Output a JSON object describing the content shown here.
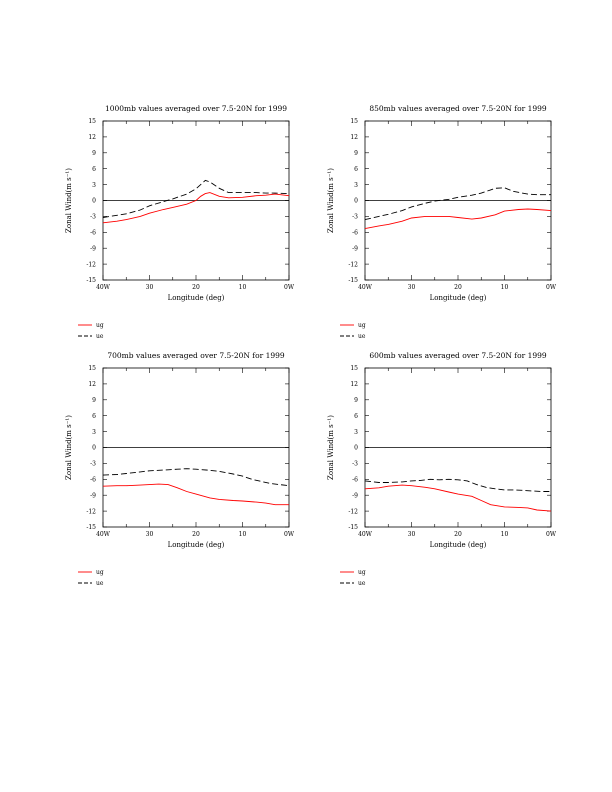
{
  "chart_data": [
    {
      "type": "line",
      "title": "1000mb values averaged over 7.5-20N for 1999",
      "xlabel": "Longitude (deg)",
      "ylabel": "Zonal Wind(m s⁻¹)",
      "xlim": [
        40,
        0
      ],
      "ylim": [
        -15,
        15
      ],
      "x_ticks": [
        40,
        30,
        20,
        10,
        0
      ],
      "x_ticklabels": [
        "40W",
        "30",
        "20",
        "10",
        "0W"
      ],
      "y_ticks": [
        -15,
        -12,
        -9,
        -6,
        -3,
        0,
        3,
        6,
        9,
        12,
        15
      ],
      "series": [
        {
          "name": "ug",
          "color": "#ff0000",
          "dash": "solid",
          "x": [
            40,
            37,
            35,
            32,
            30,
            27,
            25,
            22,
            20,
            19,
            18,
            17,
            15,
            13,
            10,
            7,
            5,
            3,
            0
          ],
          "values": [
            -4.2,
            -3.9,
            -3.6,
            -3.0,
            -2.4,
            -1.7,
            -1.3,
            -0.7,
            0.0,
            0.8,
            1.3,
            1.5,
            0.8,
            0.5,
            0.6,
            0.9,
            1.0,
            1.2,
            0.9
          ]
        },
        {
          "name": "ue",
          "color": "#000000",
          "dash": "dashed",
          "x": [
            40,
            37,
            35,
            32,
            30,
            27,
            25,
            22,
            20,
            18,
            17,
            15,
            13,
            10,
            7,
            5,
            3,
            0
          ],
          "values": [
            -3.2,
            -2.8,
            -2.5,
            -1.8,
            -1.0,
            -0.2,
            0.3,
            1.2,
            2.2,
            3.8,
            3.5,
            2.3,
            1.5,
            1.5,
            1.5,
            1.4,
            1.4,
            1.3
          ]
        }
      ],
      "legend": "bottom-left"
    },
    {
      "type": "line",
      "title": "850mb values averaged over 7.5-20N for 1999",
      "xlabel": "Longitude (deg)",
      "ylabel": "Zonal Wind(m s⁻¹)",
      "xlim": [
        40,
        0
      ],
      "ylim": [
        -15,
        15
      ],
      "x_ticks": [
        40,
        30,
        20,
        10,
        0
      ],
      "x_ticklabels": [
        "40W",
        "30",
        "20",
        "10",
        "0W"
      ],
      "y_ticks": [
        -15,
        -12,
        -9,
        -6,
        -3,
        0,
        3,
        6,
        9,
        12,
        15
      ],
      "series": [
        {
          "name": "ug",
          "color": "#ff0000",
          "dash": "solid",
          "x": [
            40,
            37,
            35,
            32,
            30,
            27,
            25,
            22,
            20,
            17,
            15,
            12,
            10,
            7,
            5,
            3,
            0
          ],
          "values": [
            -5.3,
            -4.8,
            -4.5,
            -3.9,
            -3.3,
            -3.0,
            -3.0,
            -3.0,
            -3.2,
            -3.5,
            -3.3,
            -2.7,
            -2.0,
            -1.7,
            -1.6,
            -1.7,
            -1.9
          ]
        },
        {
          "name": "ue",
          "color": "#000000",
          "dash": "dashed",
          "x": [
            40,
            37,
            35,
            32,
            30,
            27,
            25,
            22,
            20,
            17,
            15,
            13,
            12,
            10,
            8,
            5,
            3,
            0
          ],
          "values": [
            -3.6,
            -3.0,
            -2.6,
            -1.9,
            -1.2,
            -0.5,
            -0.1,
            0.2,
            0.6,
            1.0,
            1.4,
            2.0,
            2.3,
            2.4,
            1.7,
            1.2,
            1.1,
            1.1
          ]
        }
      ],
      "legend": "bottom-left"
    },
    {
      "type": "line",
      "title": "700mb values averaged over 7.5-20N for 1999",
      "xlabel": "Longitude (deg)",
      "ylabel": "Zonal Wind(m s⁻¹)",
      "xlim": [
        40,
        0
      ],
      "ylim": [
        -15,
        15
      ],
      "x_ticks": [
        40,
        30,
        20,
        10,
        0
      ],
      "x_ticklabels": [
        "40W",
        "30",
        "20",
        "10",
        "0W"
      ],
      "y_ticks": [
        -15,
        -12,
        -9,
        -6,
        -3,
        0,
        3,
        6,
        9,
        12,
        15
      ],
      "series": [
        {
          "name": "ug",
          "color": "#ff0000",
          "dash": "solid",
          "x": [
            40,
            37,
            35,
            32,
            30,
            28,
            26,
            24,
            22,
            20,
            17,
            15,
            12,
            10,
            7,
            5,
            3,
            0
          ],
          "values": [
            -7.3,
            -7.2,
            -7.2,
            -7.1,
            -7.0,
            -6.9,
            -7.0,
            -7.6,
            -8.3,
            -8.8,
            -9.5,
            -9.8,
            -10.0,
            -10.1,
            -10.3,
            -10.5,
            -10.8,
            -10.8
          ]
        },
        {
          "name": "ue",
          "color": "#000000",
          "dash": "dashed",
          "x": [
            40,
            37,
            35,
            32,
            30,
            28,
            26,
            24,
            22,
            20,
            17,
            15,
            12,
            10,
            8,
            6,
            4,
            2,
            0
          ],
          "values": [
            -5.2,
            -5.1,
            -4.9,
            -4.6,
            -4.4,
            -4.3,
            -4.2,
            -4.1,
            -4.0,
            -4.1,
            -4.3,
            -4.5,
            -5.0,
            -5.4,
            -6.0,
            -6.4,
            -6.8,
            -7.0,
            -7.2
          ]
        }
      ],
      "legend": "bottom-left"
    },
    {
      "type": "line",
      "title": "600mb values averaged over 7.5-20N for 1999",
      "xlabel": "Longitude (deg)",
      "ylabel": "Zonal Wind(m s⁻¹)",
      "xlim": [
        40,
        0
      ],
      "ylim": [
        -15,
        15
      ],
      "x_ticks": [
        40,
        30,
        20,
        10,
        0
      ],
      "x_ticklabels": [
        "40W",
        "30",
        "20",
        "10",
        "0W"
      ],
      "y_ticks": [
        -15,
        -12,
        -9,
        -6,
        -3,
        0,
        3,
        6,
        9,
        12,
        15
      ],
      "series": [
        {
          "name": "ug",
          "color": "#ff0000",
          "dash": "solid",
          "x": [
            40,
            37,
            35,
            32,
            30,
            27,
            25,
            22,
            20,
            17,
            15,
            13,
            10,
            7,
            5,
            3,
            0
          ],
          "values": [
            -7.8,
            -7.6,
            -7.3,
            -7.1,
            -7.2,
            -7.5,
            -7.8,
            -8.4,
            -8.8,
            -9.2,
            -10.0,
            -10.8,
            -11.2,
            -11.3,
            -11.4,
            -11.8,
            -12.0
          ]
        },
        {
          "name": "ue",
          "color": "#000000",
          "dash": "dashed",
          "x": [
            40,
            37,
            35,
            32,
            30,
            28,
            26,
            24,
            22,
            20,
            18,
            16,
            14,
            12,
            10,
            8,
            6,
            4,
            2,
            0
          ],
          "values": [
            -6.3,
            -6.6,
            -6.6,
            -6.5,
            -6.3,
            -6.2,
            -6.0,
            -6.1,
            -6.0,
            -6.1,
            -6.3,
            -7.0,
            -7.5,
            -7.8,
            -8.0,
            -8.0,
            -8.1,
            -8.2,
            -8.3,
            -8.3
          ]
        }
      ],
      "legend": "bottom-left"
    }
  ]
}
